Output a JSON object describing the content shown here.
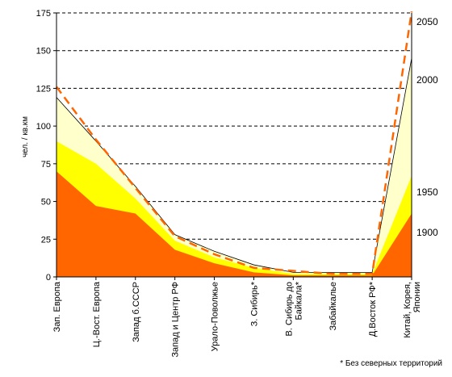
{
  "chart_data": {
    "type": "area",
    "ylabel": "чел. / кв.км",
    "ylim": [
      0,
      175
    ],
    "yticks": [
      0,
      25,
      50,
      75,
      100,
      125,
      150,
      175
    ],
    "grid": "horizontal dashed",
    "categories": [
      [
        "Зап. Европа"
      ],
      [
        "Ц.-Вост. Европа"
      ],
      [
        "Запад б.СССР"
      ],
      [
        "Запад и Центр РФ"
      ],
      [
        "Урало-Поволжье"
      ],
      [
        "З. Сибирь*"
      ],
      [
        "В. Сибирь до",
        "Байкала*"
      ],
      [
        "Забайкалье"
      ],
      [
        "Д.Восток РФ*"
      ],
      [
        "Китай, Корея,",
        "Японии"
      ]
    ],
    "series": [
      {
        "name": "1900",
        "color": "#ff6600",
        "type": "area",
        "values": [
          70,
          47,
          42,
          18,
          9,
          3,
          1,
          1,
          1,
          42
        ]
      },
      {
        "name": "1950",
        "color": "#ffff00",
        "type": "area",
        "values": [
          90,
          75,
          52,
          24,
          13,
          6,
          2,
          2,
          2,
          67
        ]
      },
      {
        "name": "2000",
        "color": "#ffffcc",
        "type": "area",
        "values": [
          119,
          90,
          60,
          28,
          17,
          8,
          3,
          3,
          3,
          145
        ]
      },
      {
        "name": "2050",
        "color": "#ff6600",
        "type": "dashed-line",
        "values": [
          126,
          91,
          59,
          27,
          15,
          6,
          4,
          2,
          2,
          176
        ]
      }
    ],
    "legend": "right side labels",
    "footnote": "* Без северных территорий"
  }
}
